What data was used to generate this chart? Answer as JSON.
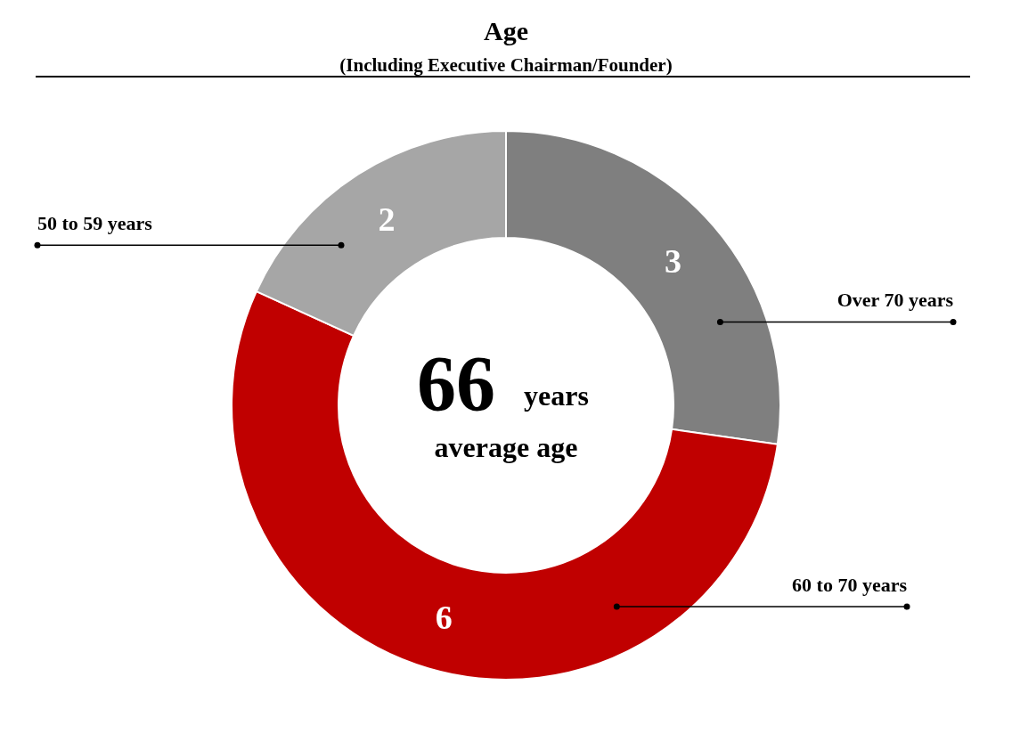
{
  "chart_data": {
    "type": "donut",
    "title": "Age",
    "subtitle": "(Including Executive Chairman/Founder)",
    "categories": [
      "Over 70 years",
      "60 to 70 years",
      "50 to 59 years"
    ],
    "values": [
      3,
      6,
      2
    ],
    "colors": [
      "#7f7f7f",
      "#c00000",
      "#a6a6a6"
    ],
    "data_labels": true,
    "annotations": [
      "66",
      "years",
      "average age"
    ]
  }
}
